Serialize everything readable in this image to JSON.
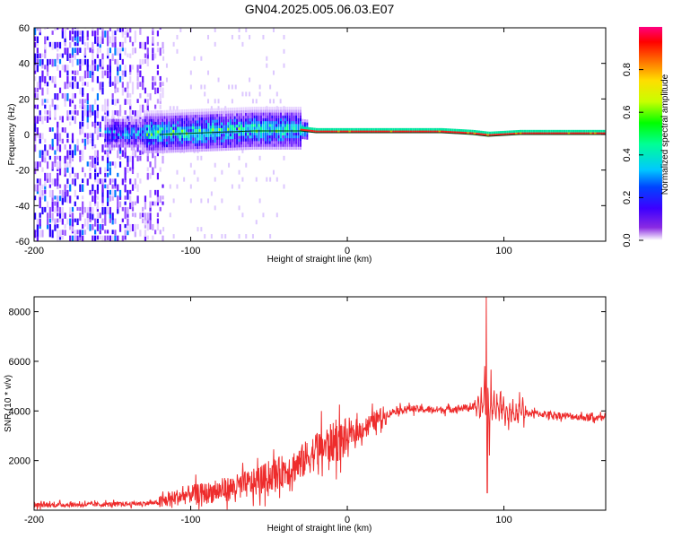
{
  "title": "GN04.2025.005.06.03.E07",
  "chart_data": [
    {
      "type": "heatmap",
      "xlabel": "Height of straight line (km)",
      "ylabel": "Frequency (Hz)",
      "xlim": [
        -200,
        165
      ],
      "ylim": [
        -60,
        60
      ],
      "xticks": [
        -200,
        -100,
        0,
        100
      ],
      "yticks": [
        -60,
        -40,
        -20,
        0,
        20,
        40,
        60
      ],
      "colorbar": {
        "label": "Normalized spectral amplitude",
        "range": [
          0,
          1
        ],
        "ticks": [
          0.0,
          0.2,
          0.4,
          0.6,
          0.8
        ],
        "colors": [
          "#ffffff",
          "#5500ff",
          "#0000ff",
          "#00b4ff",
          "#00ffaa",
          "#00ff00",
          "#c8ff00",
          "#ffff00",
          "#ff8c00",
          "#ff0000",
          "#ff0080"
        ]
      },
      "carrier_line": {
        "x": [
          -120,
          -90,
          -60,
          -30,
          -20,
          0,
          30,
          60,
          80,
          90,
          110,
          165
        ],
        "y": [
          0,
          1,
          2,
          2,
          1,
          1,
          1,
          1,
          0,
          -1,
          0,
          0
        ]
      }
    },
    {
      "type": "line",
      "xlabel": "Height of straight line (km)",
      "ylabel": "SNR (10 * v/v)",
      "xlim": [
        -200,
        165
      ],
      "ylim": [
        0,
        8600
      ],
      "xticks": [
        -200,
        -100,
        0,
        100
      ],
      "yticks": [
        2000,
        4000,
        6000,
        8000
      ],
      "color": "#ee2c2c",
      "series": [
        {
          "x": [
            -200,
            -180,
            -160,
            -140,
            -120,
            -110,
            -100,
            -90,
            -80,
            -70,
            -60,
            -50,
            -40,
            -30,
            -20,
            -10,
            0,
            10,
            20,
            30,
            40,
            50,
            60,
            70,
            80,
            85,
            88,
            90,
            92,
            95,
            100,
            105,
            110,
            120,
            130,
            140,
            150,
            165
          ],
          "y": [
            200,
            220,
            230,
            250,
            300,
            500,
            650,
            700,
            800,
            950,
            1100,
            1350,
            1600,
            1900,
            2400,
            2700,
            2900,
            3300,
            3700,
            4000,
            4100,
            4050,
            4050,
            4100,
            4150,
            4200,
            4300,
            4200,
            4100,
            4200,
            4100,
            4000,
            3900,
            3900,
            3850,
            3800,
            3750,
            3700
          ]
        }
      ]
    }
  ]
}
